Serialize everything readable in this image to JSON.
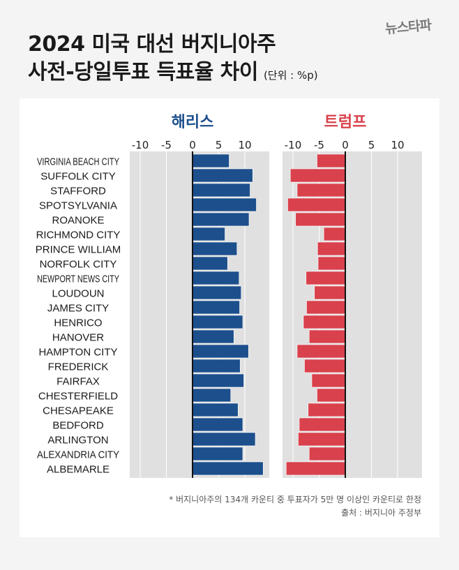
{
  "title": {
    "line1": "2024 미국 대선 버지니아주",
    "line2": "사전-당일투표 득표율 차이",
    "unit": "(단위 : %p)"
  },
  "logo": "뉴스타파",
  "chart_data": {
    "type": "bar",
    "orientation": "horizontal",
    "categories": [
      "VIRGINIA BEACH CITY",
      "SUFFOLK CITY",
      "STAFFORD",
      "SPOTSYLVANIA",
      "ROANOKE",
      "RICHMOND CITY",
      "PRINCE WILLIAM",
      "NORFOLK CITY",
      "NEWPORT NEWS CITY",
      "LOUDOUN",
      "JAMES CITY",
      "HENRICO",
      "HANOVER",
      "HAMPTON CITY",
      "FREDERICK",
      "FAIRFAX",
      "CHESTERFIELD",
      "CHESAPEAKE",
      "BEDFORD",
      "ARLINGTON",
      "ALEXANDRIA CITY",
      "ALBEMARLE"
    ],
    "panels": [
      {
        "name": "해리스",
        "color": "#1c4f8c",
        "values": [
          7.0,
          11.5,
          11.0,
          12.2,
          10.8,
          6.2,
          8.5,
          6.7,
          8.9,
          9.3,
          9.0,
          9.6,
          7.9,
          10.7,
          9.1,
          9.8,
          7.3,
          8.7,
          9.6,
          12.0,
          9.6,
          13.5
        ]
      },
      {
        "name": "트럼프",
        "color": "#d9414c",
        "values": [
          -5.4,
          -10.5,
          -9.2,
          -11.0,
          -9.5,
          -4.1,
          -5.3,
          -5.2,
          -7.5,
          -5.9,
          -7.4,
          -8.0,
          -6.9,
          -9.2,
          -7.8,
          -6.4,
          -5.4,
          -7.1,
          -8.8,
          -9.0,
          -6.9,
          -11.3
        ]
      }
    ],
    "xticks": [
      -10,
      -5,
      0,
      5,
      10
    ],
    "xlim": [
      -12,
      14
    ],
    "grid": true
  },
  "footnote": {
    "line1": "* 버지니아주의 134개 카운티 중 투표자가 5만 명 이상인 카운티로 한정",
    "line2": "출처 : 버지니아 주정부"
  }
}
